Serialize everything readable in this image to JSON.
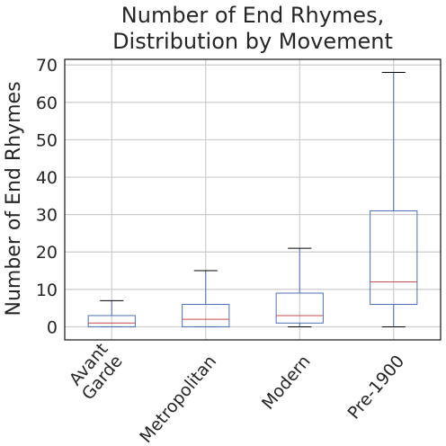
{
  "chart_data": {
    "type": "box",
    "title_lines": [
      "Number of End Rhymes,",
      "Distribution by Movement"
    ],
    "xlabel": "",
    "ylabel": "Number of End Rhymes",
    "ylim": [
      -3.5,
      71.5
    ],
    "yticks": [
      0,
      10,
      20,
      30,
      40,
      50,
      60,
      70
    ],
    "grid": true,
    "categories": [
      {
        "label_lines": [
          "Avant",
          "Garde"
        ],
        "whisker_low": 0,
        "q1": 0,
        "median": 1,
        "q3": 3,
        "whisker_high": 7
      },
      {
        "label_lines": [
          "Metropolitan"
        ],
        "whisker_low": 0,
        "q1": 0,
        "median": 2,
        "q3": 6,
        "whisker_high": 15
      },
      {
        "label_lines": [
          "Modern"
        ],
        "whisker_low": 0,
        "q1": 1,
        "median": 3,
        "q3": 9,
        "whisker_high": 21
      },
      {
        "label_lines": [
          "Pre-1900"
        ],
        "whisker_low": 0,
        "q1": 6,
        "median": 12,
        "q3": 31,
        "whisker_high": 68
      }
    ],
    "colors": {
      "box": "#4c72b0",
      "median": "#c44e52",
      "cap": "#000000",
      "grid": "#cccccc"
    }
  }
}
